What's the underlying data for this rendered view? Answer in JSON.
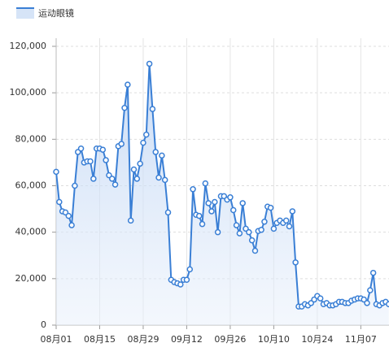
{
  "chart_data": {
    "type": "line",
    "series": [
      {
        "name": "运动眼镜",
        "color": "#3a7fd5",
        "values": [
          66000,
          53000,
          49000,
          48500,
          47000,
          43000,
          60000,
          74500,
          76000,
          70000,
          70500,
          70500,
          63000,
          76000,
          76000,
          75500,
          71000,
          64500,
          63000,
          60500,
          77000,
          78000,
          93500,
          103500,
          45000,
          67000,
          63000,
          69500,
          78500,
          82000,
          112500,
          93000,
          74500,
          63500,
          73000,
          62500,
          48500,
          19500,
          18500,
          18000,
          17500,
          19500,
          19500,
          24000,
          58500,
          47500,
          47000,
          43500,
          61000,
          52500,
          49000,
          53000,
          40000,
          55500,
          55500,
          54000,
          55000,
          49500,
          43000,
          39500,
          52500,
          41500,
          40000,
          36500,
          32000,
          40500,
          41000,
          44500,
          51000,
          50500,
          41500,
          44000,
          45000,
          44000,
          45000,
          42500,
          49000,
          27000,
          8000,
          8000,
          9000,
          8500,
          9500,
          11000,
          12500,
          11500,
          9000,
          9500,
          8500,
          8500,
          9000,
          10000,
          10000,
          9500,
          9500,
          10500,
          11000,
          11500,
          11500,
          11000,
          9500,
          15000,
          22500,
          9000,
          8500,
          9500,
          10000,
          9000
        ]
      }
    ],
    "categories": [
      "08月01",
      null,
      null,
      null,
      null,
      null,
      null,
      null,
      null,
      null,
      null,
      null,
      null,
      null,
      "08月15",
      null,
      null,
      null,
      null,
      null,
      null,
      null,
      null,
      null,
      null,
      null,
      null,
      null,
      "08月29",
      null,
      null,
      null,
      null,
      null,
      null,
      null,
      null,
      null,
      null,
      null,
      null,
      null,
      "09月12",
      null,
      null,
      null,
      null,
      null,
      null,
      null,
      null,
      null,
      null,
      null,
      null,
      null,
      "09月26",
      null,
      null,
      null,
      null,
      null,
      null,
      null,
      null,
      null,
      null,
      null,
      null,
      null,
      "10月10",
      null,
      null,
      null,
      null,
      null,
      null,
      null,
      null,
      null,
      null,
      null,
      null,
      null,
      "10月24",
      null,
      null,
      null,
      null,
      null,
      null,
      null,
      null,
      null,
      null,
      null,
      null,
      null,
      "11月07",
      null,
      null,
      null,
      null,
      null,
      null,
      null,
      null,
      null
    ],
    "ylim": [
      0,
      120000
    ],
    "yticks": [
      0,
      {
        "value": 20000,
        "label": "20,000"
      },
      {
        "value": 40000,
        "label": "40,000"
      },
      {
        "value": 60000,
        "label": "60,000"
      },
      {
        "value": 80000,
        "label": "80,000"
      },
      {
        "value": 100000,
        "label": "100,000"
      },
      {
        "value": 120000,
        "label": "120,000"
      }
    ],
    "grid": true,
    "legend": "top-left"
  }
}
